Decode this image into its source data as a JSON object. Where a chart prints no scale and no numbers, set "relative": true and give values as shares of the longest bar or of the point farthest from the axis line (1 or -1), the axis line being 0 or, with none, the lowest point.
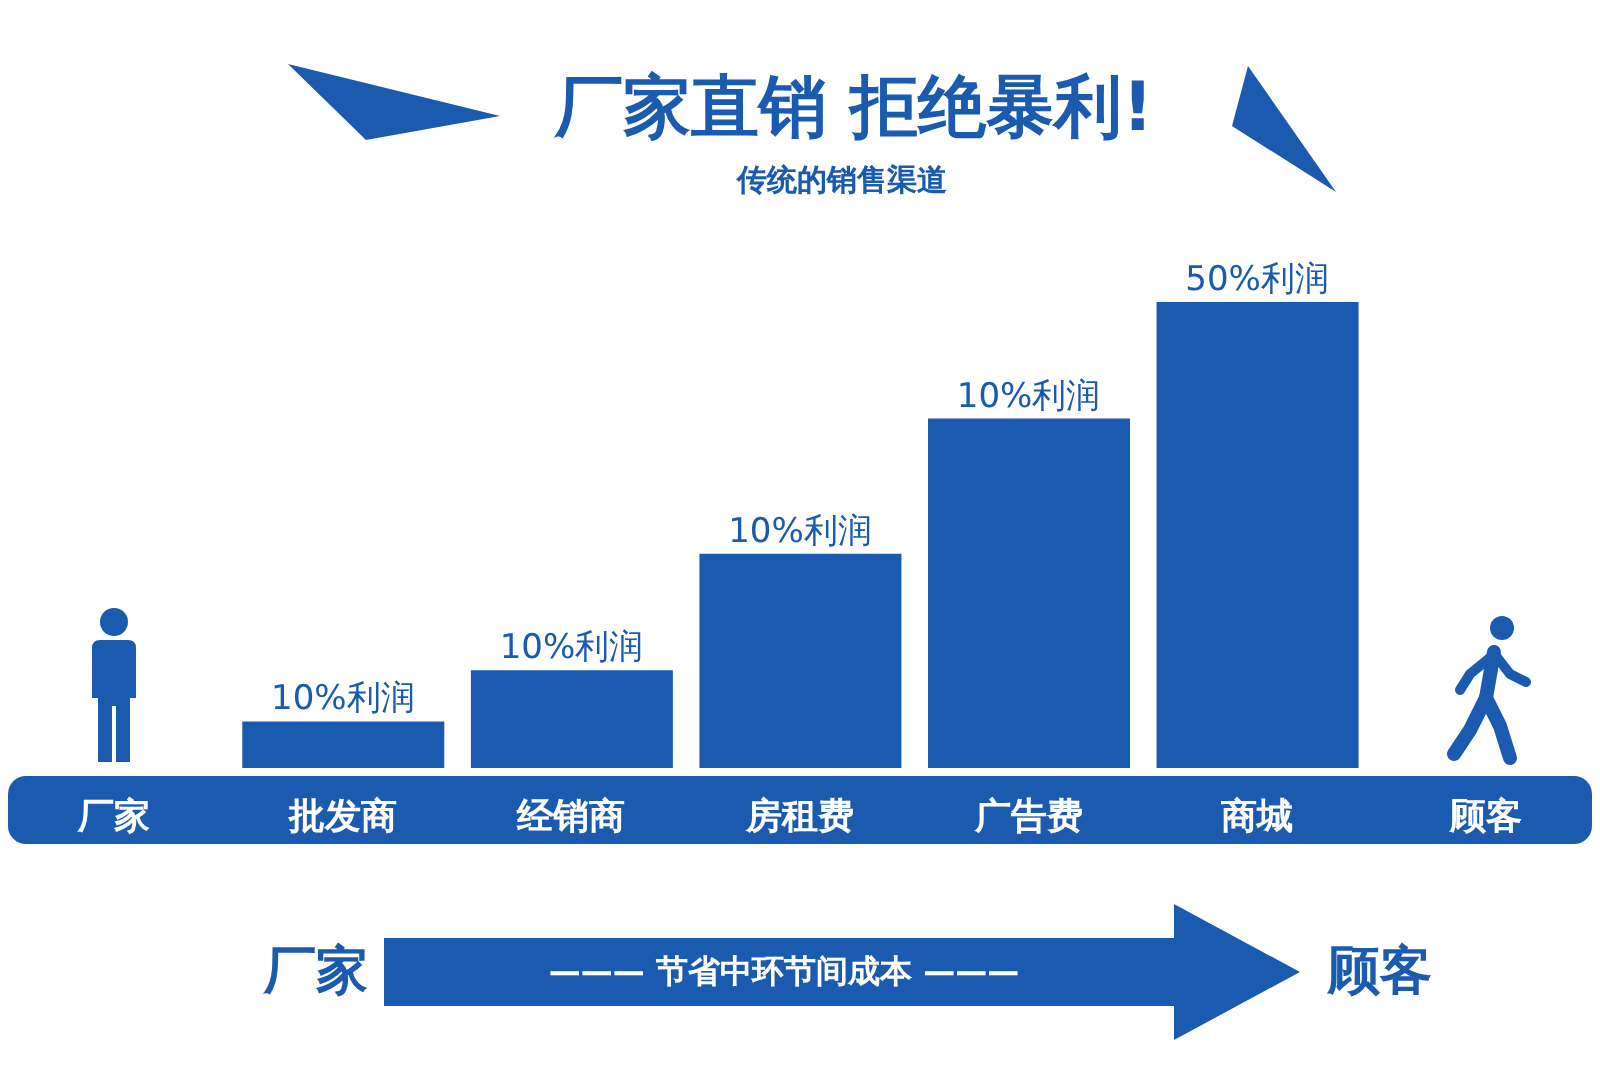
{
  "chart_data": {
    "type": "bar",
    "title": "厂家直销 拒绝暴利!",
    "subtitle": "传统的销售渠道",
    "categories": [
      "厂家",
      "批发商",
      "经销商",
      "房租费",
      "广告费",
      "商城",
      "顾客"
    ],
    "values": [
      null,
      0.1,
      0.21,
      0.46,
      0.75,
      1,
      null
    ],
    "color": "#1a5aaf",
    "relative": true,
    "annotations": [
      {
        "text": "10%利润",
        "x": "批发商",
        "y": 0.1
      },
      {
        "text": "10%利润",
        "x": "经销商",
        "y": 0.21
      },
      {
        "text": "10%利润",
        "x": "房租费",
        "y": 0.46
      },
      {
        "text": "10%利润",
        "x": "广告费",
        "y": 0.75
      },
      {
        "text": "50%利润",
        "x": "商城",
        "y": 1
      },
      "厂家",
      "——— 节省中环节间成本 ———",
      "顾客"
    ]
  }
}
